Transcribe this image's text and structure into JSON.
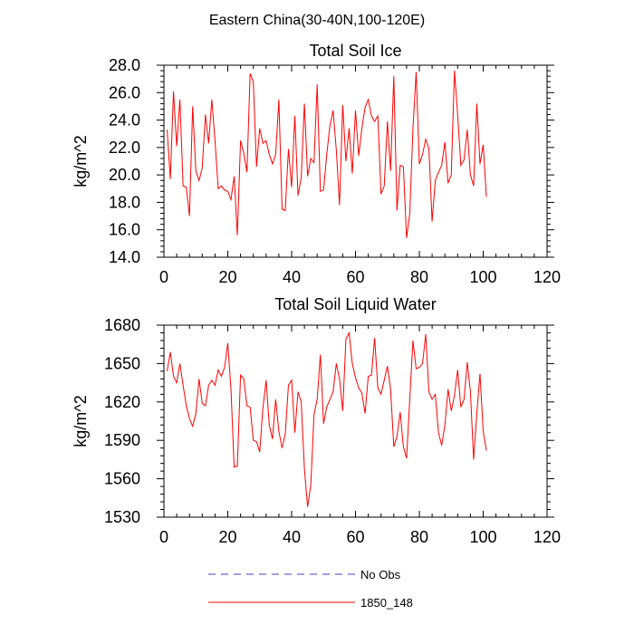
{
  "figure": {
    "title": "Eastern China(30-40N,100-120E)"
  },
  "legend": {
    "items": [
      {
        "label": "No Obs",
        "color": "#4040c0",
        "style": "dashed"
      },
      {
        "label": "1850_148",
        "color": "#ff0000",
        "style": "solid"
      }
    ]
  },
  "chart_data": [
    {
      "type": "line",
      "title": "Total Soil Ice",
      "xlabel": "",
      "ylabel": "kg/m^2",
      "xlim": [
        0,
        120
      ],
      "ylim": [
        14,
        28
      ],
      "x_ticks": [
        0,
        20,
        40,
        60,
        80,
        100,
        120
      ],
      "y_ticks": [
        14,
        16,
        18,
        20,
        22,
        24,
        26,
        28
      ],
      "y_tick_labels": [
        "14.0",
        "16.0",
        "18.0",
        "20.0",
        "22.0",
        "24.0",
        "26.0",
        "28.0"
      ],
      "x_tick_labels": [
        "0",
        "20",
        "40",
        "60",
        "80",
        "100",
        "120"
      ],
      "series": [
        {
          "name": "1850_148",
          "color": "#ff0000",
          "x_start": 1,
          "values": [
            23.3,
            19.7,
            26.1,
            22.1,
            25.5,
            19.2,
            19.1,
            17.0,
            25.0,
            20.3,
            19.6,
            20.5,
            24.4,
            22.3,
            25.5,
            22.5,
            19.0,
            19.2,
            18.9,
            18.8,
            18.2,
            19.9,
            15.6,
            22.5,
            21.6,
            20.2,
            27.4,
            26.8,
            20.6,
            23.4,
            22.3,
            22.5,
            21.5,
            20.8,
            21.5,
            25.5,
            17.5,
            17.4,
            21.9,
            19.1,
            24.3,
            18.5,
            19.8,
            25.2,
            19.9,
            21.2,
            20.9,
            26.6,
            18.8,
            18.9,
            21.5,
            23.6,
            24.7,
            21.8,
            17.8,
            25.1,
            21.0,
            23.4,
            20.1,
            24.7,
            21.4,
            23.4,
            24.9,
            25.5,
            24.3,
            23.9,
            24.3,
            18.6,
            19.2,
            23.9,
            20.3,
            27.2,
            17.4,
            20.7,
            20.6,
            15.4,
            17.2,
            23.4,
            27.5,
            20.8,
            21.5,
            22.6,
            21.9,
            16.6,
            19.6,
            20.2,
            20.7,
            22.4,
            19.4,
            20.0,
            27.6,
            24.4,
            20.7,
            21.1,
            23.3,
            20.0,
            19.2,
            25.2,
            20.8,
            22.2,
            18.4
          ]
        }
      ]
    },
    {
      "type": "line",
      "title": "Total Soil Liquid Water",
      "xlabel": "",
      "ylabel": "kg/m^2",
      "xlim": [
        0,
        120
      ],
      "ylim": [
        1530,
        1680
      ],
      "x_ticks": [
        0,
        20,
        40,
        60,
        80,
        100,
        120
      ],
      "y_ticks": [
        1530,
        1560,
        1590,
        1620,
        1650,
        1680
      ],
      "y_tick_labels": [
        "1530",
        "1560",
        "1590",
        "1620",
        "1650",
        "1680"
      ],
      "x_tick_labels": [
        "0",
        "20",
        "40",
        "60",
        "80",
        "100",
        "120"
      ],
      "series": [
        {
          "name": "1850_148",
          "color": "#ff0000",
          "x_start": 1,
          "values": [
            1644,
            1659,
            1640,
            1635,
            1650,
            1633,
            1617,
            1607,
            1601,
            1611,
            1638,
            1619,
            1617,
            1633,
            1637,
            1633,
            1645,
            1640,
            1647,
            1666,
            1630,
            1569,
            1570,
            1641,
            1638,
            1617,
            1616,
            1590,
            1589,
            1581,
            1615,
            1637,
            1602,
            1591,
            1622,
            1597,
            1584,
            1595,
            1633,
            1637,
            1596,
            1628,
            1620,
            1568,
            1538,
            1555,
            1610,
            1622,
            1657,
            1603,
            1616,
            1622,
            1628,
            1650,
            1638,
            1613,
            1669,
            1674,
            1650,
            1639,
            1631,
            1627,
            1611,
            1640,
            1641,
            1670,
            1631,
            1626,
            1637,
            1648,
            1630,
            1585,
            1593,
            1612,
            1585,
            1576,
            1622,
            1668,
            1646,
            1647,
            1650,
            1673,
            1628,
            1622,
            1626,
            1596,
            1586,
            1602,
            1630,
            1613,
            1625,
            1645,
            1616,
            1622,
            1651,
            1628,
            1575,
            1611,
            1642,
            1597,
            1582
          ]
        }
      ]
    }
  ]
}
